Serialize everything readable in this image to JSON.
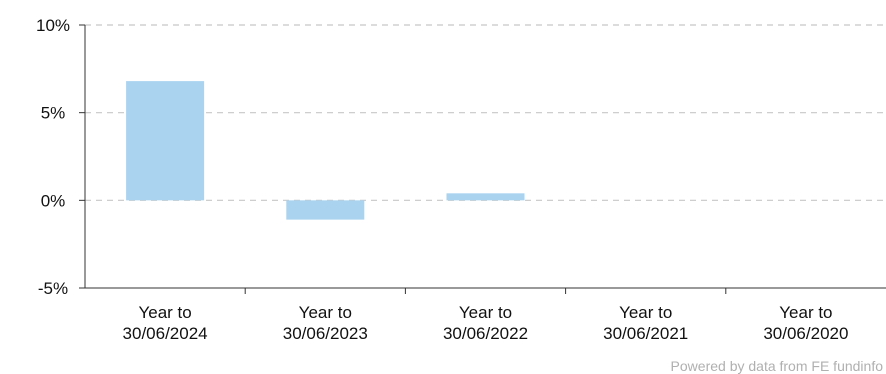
{
  "chart_data": {
    "type": "bar",
    "categories": [
      [
        "Year to",
        "30/06/2024"
      ],
      [
        "Year to",
        "30/06/2023"
      ],
      [
        "Year to",
        "30/06/2022"
      ],
      [
        "Year to",
        "30/06/2021"
      ],
      [
        "Year to",
        "30/06/2020"
      ]
    ],
    "values": [
      6.8,
      -1.1,
      0.4,
      null,
      null
    ],
    "ylim": [
      -5,
      10
    ],
    "yticks": [
      10,
      5,
      0,
      -5
    ],
    "ytick_format": "%",
    "grid": true,
    "legend": "none",
    "bar_color": "#aad3f0",
    "grid_color": "#c8c8c8"
  },
  "credit": "Powered by data from FE fundinfo"
}
